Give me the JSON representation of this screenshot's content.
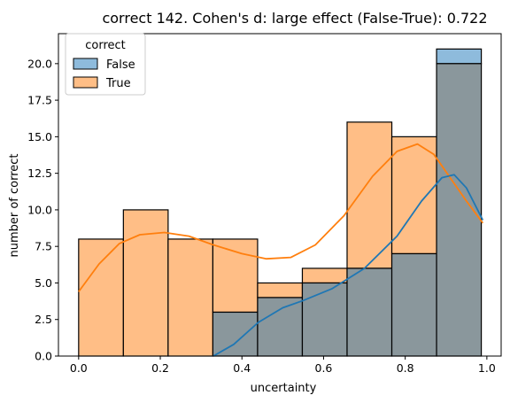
{
  "chart_data": {
    "type": "bar",
    "title": "correct 142. Cohen's d: large effect (False-True): 0.722",
    "xlabel": "uncertainty",
    "ylabel": "number of correct",
    "xlim": [
      -0.0495,
      1.035
    ],
    "ylim": [
      0,
      22.05
    ],
    "xticks": [
      0.0,
      0.2,
      0.4,
      0.6,
      0.8,
      1.0
    ],
    "xtick_labels": [
      "0.0",
      "0.2",
      "0.4",
      "0.6",
      "0.8",
      "1.0"
    ],
    "yticks": [
      0.0,
      2.5,
      5.0,
      7.5,
      10.0,
      12.5,
      15.0,
      17.5,
      20.0
    ],
    "ytick_labels": [
      "0.0",
      "2.5",
      "5.0",
      "7.5",
      "10.0",
      "12.5",
      "15.0",
      "17.5",
      "20.0"
    ],
    "bin_edges": [
      0.0,
      0.1096,
      0.2192,
      0.3288,
      0.4384,
      0.548,
      0.6576,
      0.7672,
      0.8768,
      0.9864
    ],
    "series": [
      {
        "name": "False",
        "values": [
          0,
          0,
          0,
          3,
          4,
          5,
          6,
          7,
          21
        ],
        "color": "#1f77b4",
        "kde": [
          [
            0.33,
            0.0
          ],
          [
            0.38,
            0.8
          ],
          [
            0.44,
            2.3
          ],
          [
            0.5,
            3.3
          ],
          [
            0.55,
            3.8
          ],
          [
            0.62,
            4.6
          ],
          [
            0.7,
            6.0
          ],
          [
            0.78,
            8.2
          ],
          [
            0.84,
            10.6
          ],
          [
            0.89,
            12.2
          ],
          [
            0.92,
            12.4
          ],
          [
            0.95,
            11.5
          ],
          [
            0.99,
            9.3
          ]
        ]
      },
      {
        "name": "True",
        "values": [
          8,
          10,
          8,
          8,
          5,
          6,
          16,
          15,
          20
        ],
        "color": "#ff7f0e",
        "kde": [
          [
            0.0,
            4.4
          ],
          [
            0.05,
            6.3
          ],
          [
            0.1,
            7.7
          ],
          [
            0.15,
            8.3
          ],
          [
            0.21,
            8.45
          ],
          [
            0.27,
            8.2
          ],
          [
            0.33,
            7.6
          ],
          [
            0.4,
            7.0
          ],
          [
            0.46,
            6.65
          ],
          [
            0.52,
            6.75
          ],
          [
            0.58,
            7.6
          ],
          [
            0.65,
            9.6
          ],
          [
            0.72,
            12.3
          ],
          [
            0.78,
            14.0
          ],
          [
            0.83,
            14.5
          ],
          [
            0.87,
            13.8
          ],
          [
            0.91,
            12.2
          ],
          [
            0.95,
            10.6
          ],
          [
            0.99,
            9.1
          ]
        ]
      }
    ],
    "legend": {
      "title": "correct",
      "position": "top-left",
      "entries": [
        "False",
        "True"
      ]
    },
    "overlap_color": "#8a979c",
    "grid": false
  }
}
